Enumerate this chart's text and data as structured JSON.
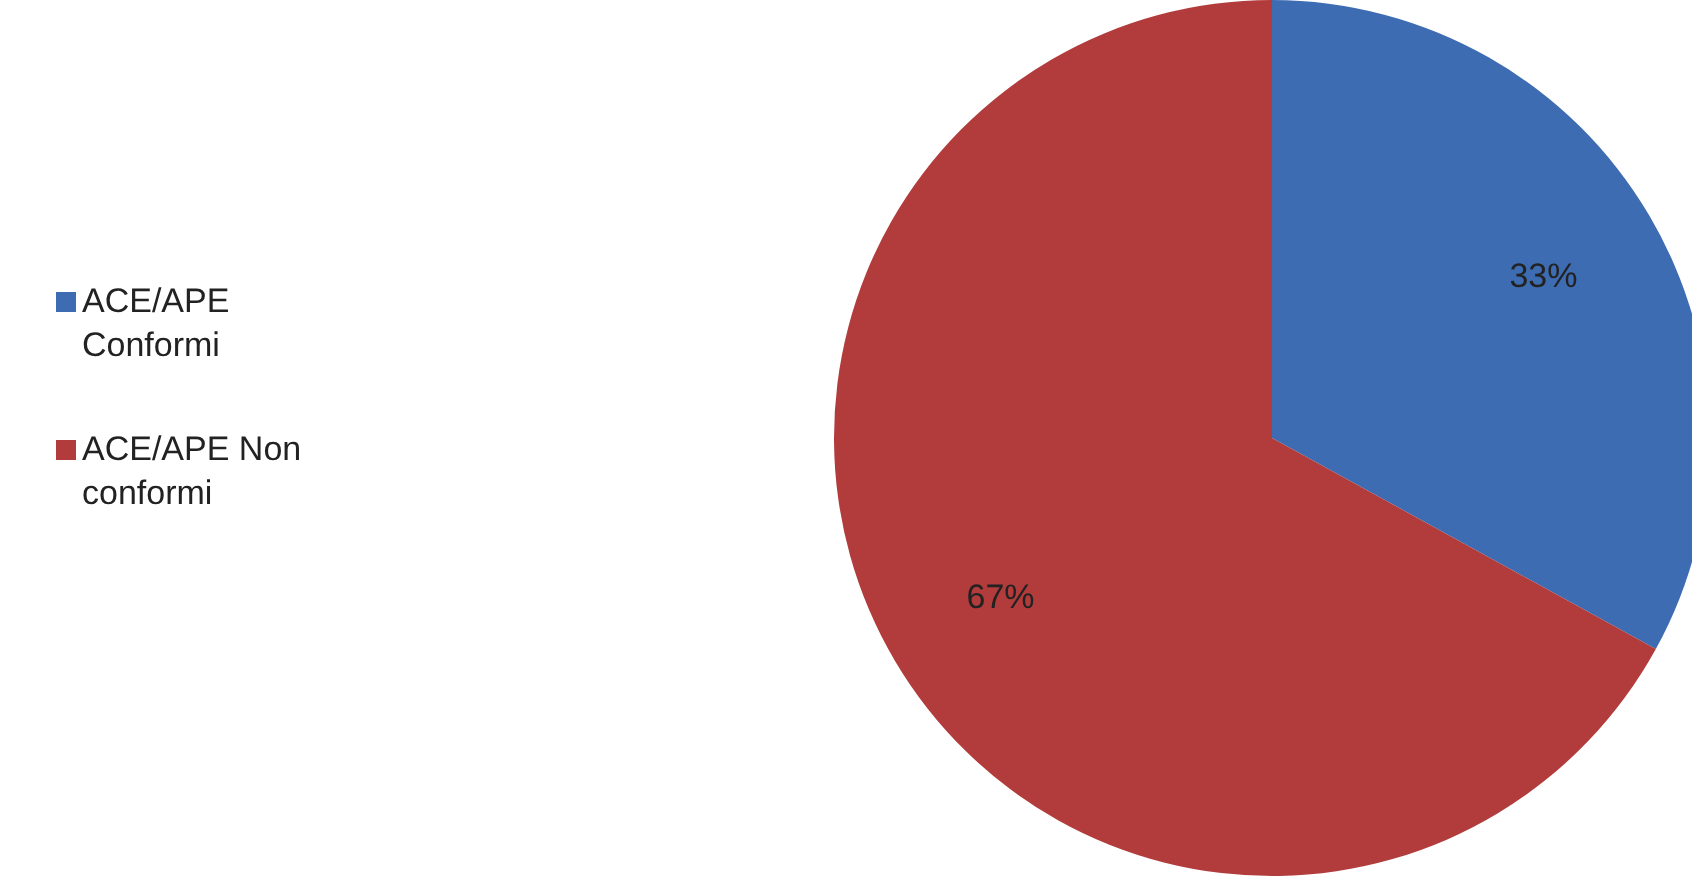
{
  "chart_data": {
    "type": "pie",
    "categories": [
      "ACE/APE Conformi",
      "ACE/APE Non conformi"
    ],
    "values": [
      33,
      67
    ],
    "colors": [
      "#3d6cb2",
      "#b13c3b"
    ],
    "value_labels": [
      "33%",
      "67%"
    ],
    "legend": "left"
  }
}
